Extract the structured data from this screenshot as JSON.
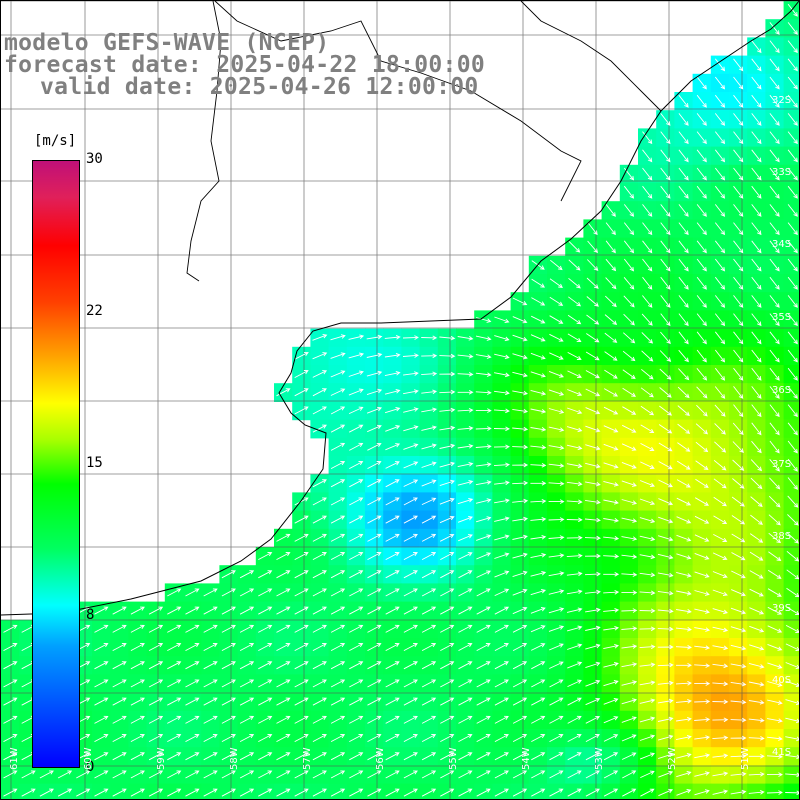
{
  "title": {
    "line1": "modelo GEFS-WAVE (NCEP)",
    "line2": "forecast date: 2025-04-22 18:00:00",
    "line3": "valid date: 2025-04-26 12:00:00"
  },
  "colorbar": {
    "unit": "[m/s]",
    "ticks": [
      "30",
      "22",
      "15",
      "8",
      "0"
    ],
    "colors": [
      "#0000ff",
      "#00ffff",
      "#00ff00",
      "#ffff00",
      "#ff0000",
      "#c01078"
    ]
  },
  "grid": {
    "lat_labels": [
      "32S",
      "33S",
      "34S",
      "35S",
      "36S",
      "37S",
      "38S",
      "39S",
      "40S",
      "41S"
    ],
    "lon_labels": [
      "61W",
      "60W",
      "59W",
      "58W",
      "57W",
      "56W",
      "55W",
      "54W",
      "53W",
      "52W",
      "51W"
    ]
  },
  "map_data": {
    "variable": "wind speed",
    "units": "m/s",
    "value_range": [
      0,
      30
    ],
    "lon_range": [
      -61.5,
      -50.5
    ],
    "lat_range": [
      -31.0,
      -41.5
    ],
    "wind_maxima_regions": [
      {
        "area": "east of 36S-38S",
        "approx_speed": 17
      },
      {
        "area": "southeast near 40S-41S",
        "approx_speed": 20
      }
    ],
    "coastline": "Uruguay and southern Brazil coast, Rio de la Plata, Buenos Aires province"
  }
}
